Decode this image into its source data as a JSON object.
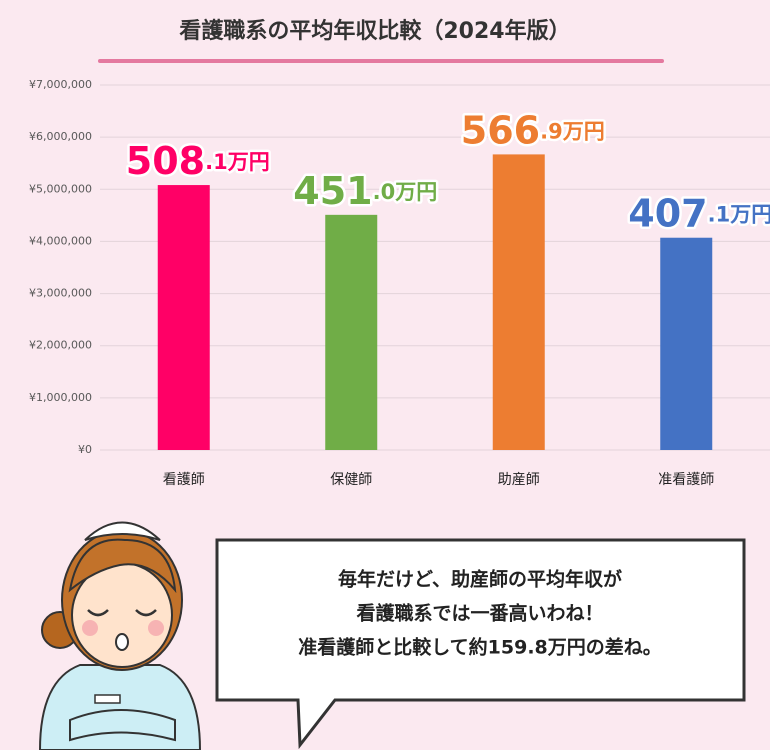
{
  "chart_data": {
    "type": "bar",
    "title": "看護職系の平均年収比較（2024年版）",
    "categories": [
      "看護師",
      "保健師",
      "助産師",
      "准看護師"
    ],
    "values": [
      5081000,
      4510000,
      5669000,
      4071000
    ],
    "value_labels": [
      "508.1万円",
      "451.0万円",
      "566.9万円",
      "407.1万円"
    ],
    "colors": [
      "#ff0066",
      "#70ad47",
      "#ed7d31",
      "#4472c4"
    ],
    "ylim": [
      0,
      7000000
    ],
    "yticks": [
      {
        "value": 0,
        "label": "¥0"
      },
      {
        "value": 1000000,
        "label": "¥1,000,000"
      },
      {
        "value": 2000000,
        "label": "¥2,000,000"
      },
      {
        "value": 3000000,
        "label": "¥3,000,000"
      },
      {
        "value": 4000000,
        "label": "¥4,000,000"
      },
      {
        "value": 5000000,
        "label": "¥5,000,000"
      },
      {
        "value": 6000000,
        "label": "¥6,000,000"
      },
      {
        "value": 7000000,
        "label": "¥7,000,000"
      }
    ],
    "grid": true,
    "annotations": [
      "毎年だけど、助産師の平均年収が",
      "看護職系では一番高いわね！",
      "准看護師と比較して約159.8万円の差ね。"
    ]
  }
}
